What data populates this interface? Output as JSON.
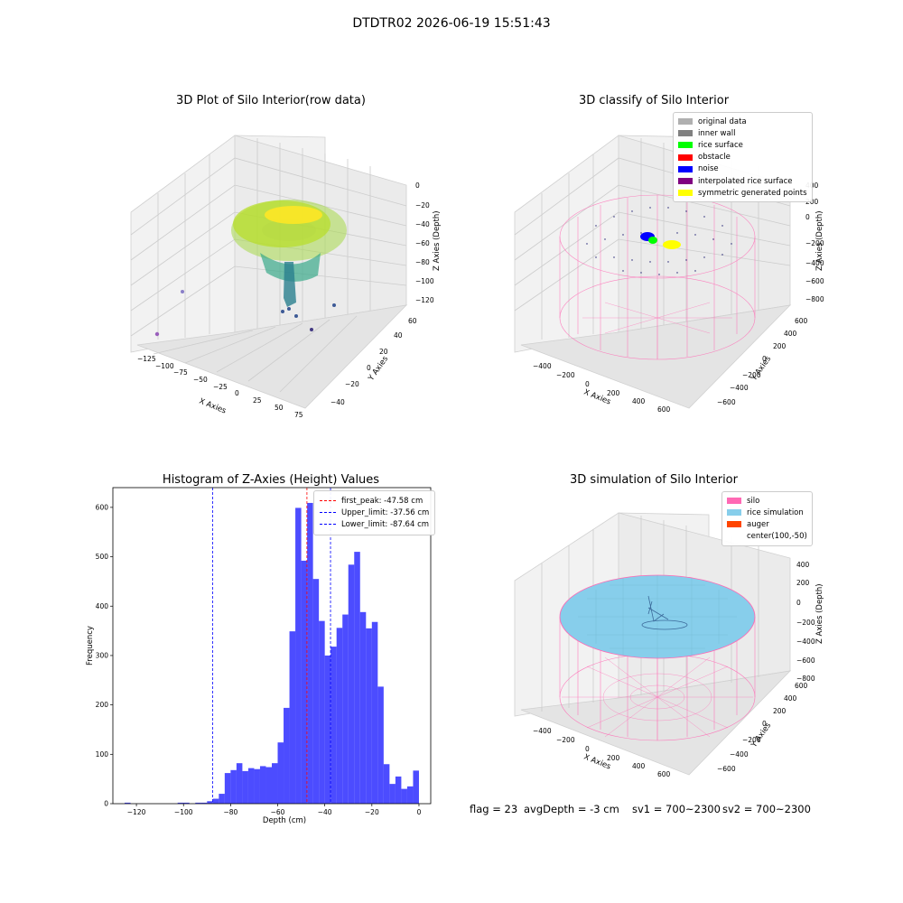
{
  "suptitle": "DTDTR02 2026-06-19 15:51:43",
  "panels": {
    "raw": {
      "title": "3D Plot of Silo Interior(row data)",
      "xlabel": "X Axies",
      "ylabel": "Y Axies",
      "zlabel": "Z Axies (Depth)",
      "xticks": [
        "−125",
        "−100",
        "−75",
        "−50",
        "−25",
        "0",
        "25",
        "50",
        "75"
      ],
      "yticks": [
        "60",
        "40",
        "20",
        "0",
        "−20",
        "−40"
      ],
      "zticks": [
        "0",
        "−20",
        "−40",
        "−60",
        "−80",
        "−100",
        "−120"
      ]
    },
    "classify": {
      "title": "3D classify of Silo Interior",
      "xlabel": "X Axies",
      "ylabel": "Y Axies",
      "zlabel": "Z Axies (Depth)",
      "xticks": [
        "−400",
        "−200",
        "0",
        "200",
        "400",
        "600"
      ],
      "yticks": [
        "600",
        "400",
        "200",
        "0",
        "−200",
        "−400",
        "−600"
      ],
      "zticks": [
        "400",
        "200",
        "0",
        "−200",
        "−400",
        "−600",
        "−800"
      ],
      "legend": [
        {
          "label": "original data",
          "color": "#b0b0b0"
        },
        {
          "label": "inner wall",
          "color": "#808080"
        },
        {
          "label": "rice surface",
          "color": "#00ff00"
        },
        {
          "label": "obstacle",
          "color": "#ff0000"
        },
        {
          "label": "noise",
          "color": "#0000ff"
        },
        {
          "label": "interpolated rice surface",
          "color": "#800080"
        },
        {
          "label": "symmetric generated points",
          "color": "#ffff00"
        }
      ]
    },
    "simulation": {
      "title": "3D simulation of Silo Interior",
      "xlabel": "X Axies",
      "ylabel": "Y Axies",
      "zlabel": "Z Axies (Depth)",
      "xticks": [
        "−400",
        "−200",
        "0",
        "200",
        "400",
        "600"
      ],
      "yticks": [
        "600",
        "400",
        "200",
        "0",
        "−200",
        "−400",
        "−600"
      ],
      "zticks": [
        "400",
        "200",
        "0",
        "−200",
        "−400",
        "−600",
        "−800"
      ],
      "legend": [
        {
          "label": "silo",
          "color": "#ff69b4"
        },
        {
          "label": "rice simulation",
          "color": "#87ceeb"
        },
        {
          "label": "auger",
          "color": "#ff4500"
        },
        {
          "label": "center(100,-50)",
          "color": ""
        }
      ]
    }
  },
  "status": {
    "flag": "flag = 23",
    "avg_depth": "avgDepth = -3 cm",
    "sv1": "sv1 = 700~2300",
    "sv2": "sv2 = 700~2300"
  },
  "chart_data": {
    "type": "bar",
    "title": "Histogram of Z-Axies (Height) Values",
    "xlabel": "Depth (cm)",
    "ylabel": "Frequency",
    "xlim": [
      -130,
      5
    ],
    "ylim": [
      0,
      640
    ],
    "xticks": [
      -120,
      -100,
      -80,
      -60,
      -40,
      -20,
      0
    ],
    "yticks": [
      0,
      100,
      200,
      300,
      400,
      500,
      600
    ],
    "bar_color": "#0000ff",
    "bar_alpha": 0.7,
    "bin_width": 2.5,
    "bins": [
      {
        "x": -125,
        "count": 2
      },
      {
        "x": -122.5,
        "count": 0
      },
      {
        "x": -120,
        "count": 0
      },
      {
        "x": -117.5,
        "count": 0
      },
      {
        "x": -115,
        "count": 0
      },
      {
        "x": -112.5,
        "count": 0
      },
      {
        "x": -110,
        "count": 0
      },
      {
        "x": -107.5,
        "count": 0
      },
      {
        "x": -105,
        "count": 0
      },
      {
        "x": -102.5,
        "count": 2
      },
      {
        "x": -100,
        "count": 2
      },
      {
        "x": -97.5,
        "count": 0
      },
      {
        "x": -95,
        "count": 2
      },
      {
        "x": -92.5,
        "count": 2
      },
      {
        "x": -90,
        "count": 5
      },
      {
        "x": -87.5,
        "count": 10
      },
      {
        "x": -85,
        "count": 20
      },
      {
        "x": -82.5,
        "count": 62
      },
      {
        "x": -80,
        "count": 68
      },
      {
        "x": -77.5,
        "count": 82
      },
      {
        "x": -75,
        "count": 66
      },
      {
        "x": -72.5,
        "count": 72
      },
      {
        "x": -70,
        "count": 70
      },
      {
        "x": -67.5,
        "count": 76
      },
      {
        "x": -65,
        "count": 74
      },
      {
        "x": -62.5,
        "count": 82
      },
      {
        "x": -60,
        "count": 124
      },
      {
        "x": -57.5,
        "count": 194
      },
      {
        "x": -55,
        "count": 349
      },
      {
        "x": -52.5,
        "count": 599
      },
      {
        "x": -50,
        "count": 492
      },
      {
        "x": -47.5,
        "count": 609
      },
      {
        "x": -45,
        "count": 455
      },
      {
        "x": -42.5,
        "count": 370
      },
      {
        "x": -40,
        "count": 300
      },
      {
        "x": -37.5,
        "count": 318
      },
      {
        "x": -35,
        "count": 356
      },
      {
        "x": -32.5,
        "count": 383
      },
      {
        "x": -30,
        "count": 484
      },
      {
        "x": -27.5,
        "count": 510
      },
      {
        "x": -25,
        "count": 388
      },
      {
        "x": -22.5,
        "count": 355
      },
      {
        "x": -20,
        "count": 368
      },
      {
        "x": -17.5,
        "count": 237
      },
      {
        "x": -15,
        "count": 80
      },
      {
        "x": -12.5,
        "count": 40
      },
      {
        "x": -10,
        "count": 55
      },
      {
        "x": -7.5,
        "count": 30
      },
      {
        "x": -5,
        "count": 35
      },
      {
        "x": -2.5,
        "count": 67
      }
    ],
    "vlines": [
      {
        "x": -47.58,
        "color": "#ff0000",
        "label": "first_peak: -47.58 cm"
      },
      {
        "x": -37.56,
        "color": "#0000ff",
        "label": "Upper_limit: -37.56 cm"
      },
      {
        "x": -87.64,
        "color": "#0000ff",
        "label": "Lower_limit: -87.64 cm"
      }
    ],
    "legend_position": "top-right"
  }
}
